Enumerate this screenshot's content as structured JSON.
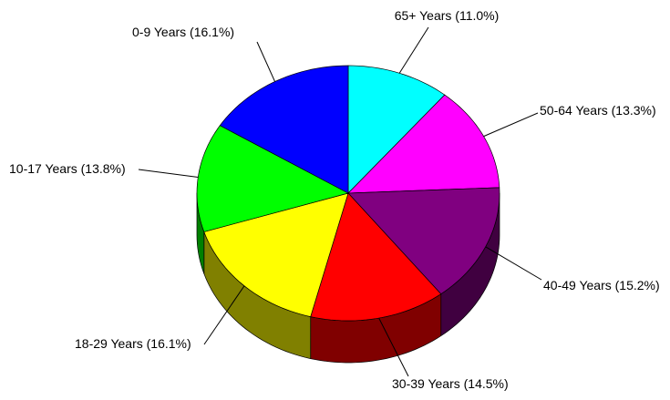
{
  "chart_data": {
    "type": "pie",
    "style": "3d",
    "title": "",
    "legend": "none",
    "slices": [
      {
        "label": "65+ Years (11.0%)",
        "value": 11.0,
        "color": "#00FFFF",
        "side_color": "#008080"
      },
      {
        "label": "50-64 Years (13.3%)",
        "value": 13.3,
        "color": "#FF00FF",
        "side_color": "#800080"
      },
      {
        "label": "40-49 Years (15.2%)",
        "value": 15.2,
        "color": "#800080",
        "side_color": "#400040"
      },
      {
        "label": "30-39 Years (14.5%)",
        "value": 14.5,
        "color": "#FF0000",
        "side_color": "#800000"
      },
      {
        "label": "18-29 Years (16.1%)",
        "value": 16.1,
        "color": "#FFFF00",
        "side_color": "#808000"
      },
      {
        "label": "10-17 Years (13.8%)",
        "value": 13.8,
        "color": "#00FF00",
        "side_color": "#008000"
      },
      {
        "label": "0-9 Years (16.1%)",
        "value": 16.1,
        "color": "#0000FF",
        "side_color": "#000080"
      }
    ]
  }
}
